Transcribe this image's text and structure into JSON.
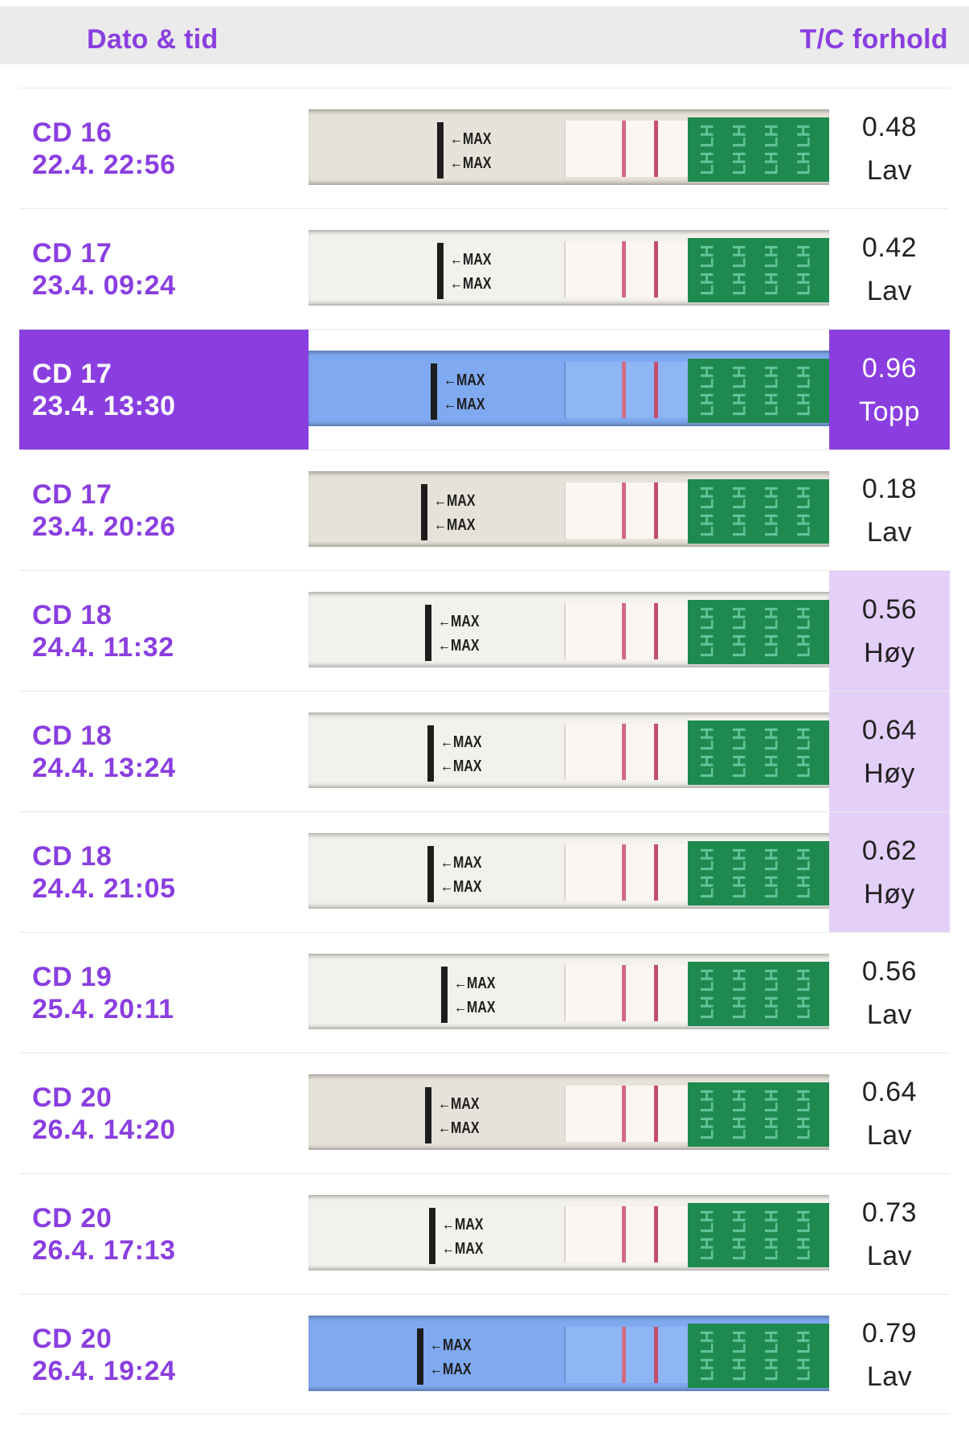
{
  "header": {
    "date_label": "Dato & tid",
    "ratio_label": "T/C forhold"
  },
  "strip": {
    "max_label": "←MAX",
    "pad_label": "LH"
  },
  "colors": {
    "accent": "#8a3ee0",
    "high_bg": "#e4cff8",
    "header_bg": "#ebebeb"
  },
  "rows": [
    {
      "cd": "CD 16",
      "datetime": "22.4. 22:56",
      "ratio": "0.48",
      "level": "Lav",
      "state": "low",
      "strip_style": "dark"
    },
    {
      "cd": "CD 17",
      "datetime": "23.4. 09:24",
      "ratio": "0.42",
      "level": "Lav",
      "state": "low",
      "strip_style": "light"
    },
    {
      "cd": "CD 17",
      "datetime": "23.4. 13:30",
      "ratio": "0.96",
      "level": "Topp",
      "state": "peak",
      "strip_style": "blue"
    },
    {
      "cd": "CD 17",
      "datetime": "23.4. 20:26",
      "ratio": "0.18",
      "level": "Lav",
      "state": "low",
      "strip_style": "dark"
    },
    {
      "cd": "CD 18",
      "datetime": "24.4. 11:32",
      "ratio": "0.56",
      "level": "Høy",
      "state": "high",
      "strip_style": "light"
    },
    {
      "cd": "CD 18",
      "datetime": "24.4. 13:24",
      "ratio": "0.64",
      "level": "Høy",
      "state": "high",
      "strip_style": "light"
    },
    {
      "cd": "CD 18",
      "datetime": "24.4. 21:05",
      "ratio": "0.62",
      "level": "Høy",
      "state": "high",
      "strip_style": "light"
    },
    {
      "cd": "CD 19",
      "datetime": "25.4. 20:11",
      "ratio": "0.56",
      "level": "Lav",
      "state": "low",
      "strip_style": "light"
    },
    {
      "cd": "CD 20",
      "datetime": "26.4. 14:20",
      "ratio": "0.64",
      "level": "Lav",
      "state": "low",
      "strip_style": "dark"
    },
    {
      "cd": "CD 20",
      "datetime": "26.4. 17:13",
      "ratio": "0.73",
      "level": "Lav",
      "state": "low",
      "strip_style": "light"
    },
    {
      "cd": "CD 20",
      "datetime": "26.4. 19:24",
      "ratio": "0.79",
      "level": "Lav",
      "state": "low",
      "strip_style": "blue"
    }
  ]
}
